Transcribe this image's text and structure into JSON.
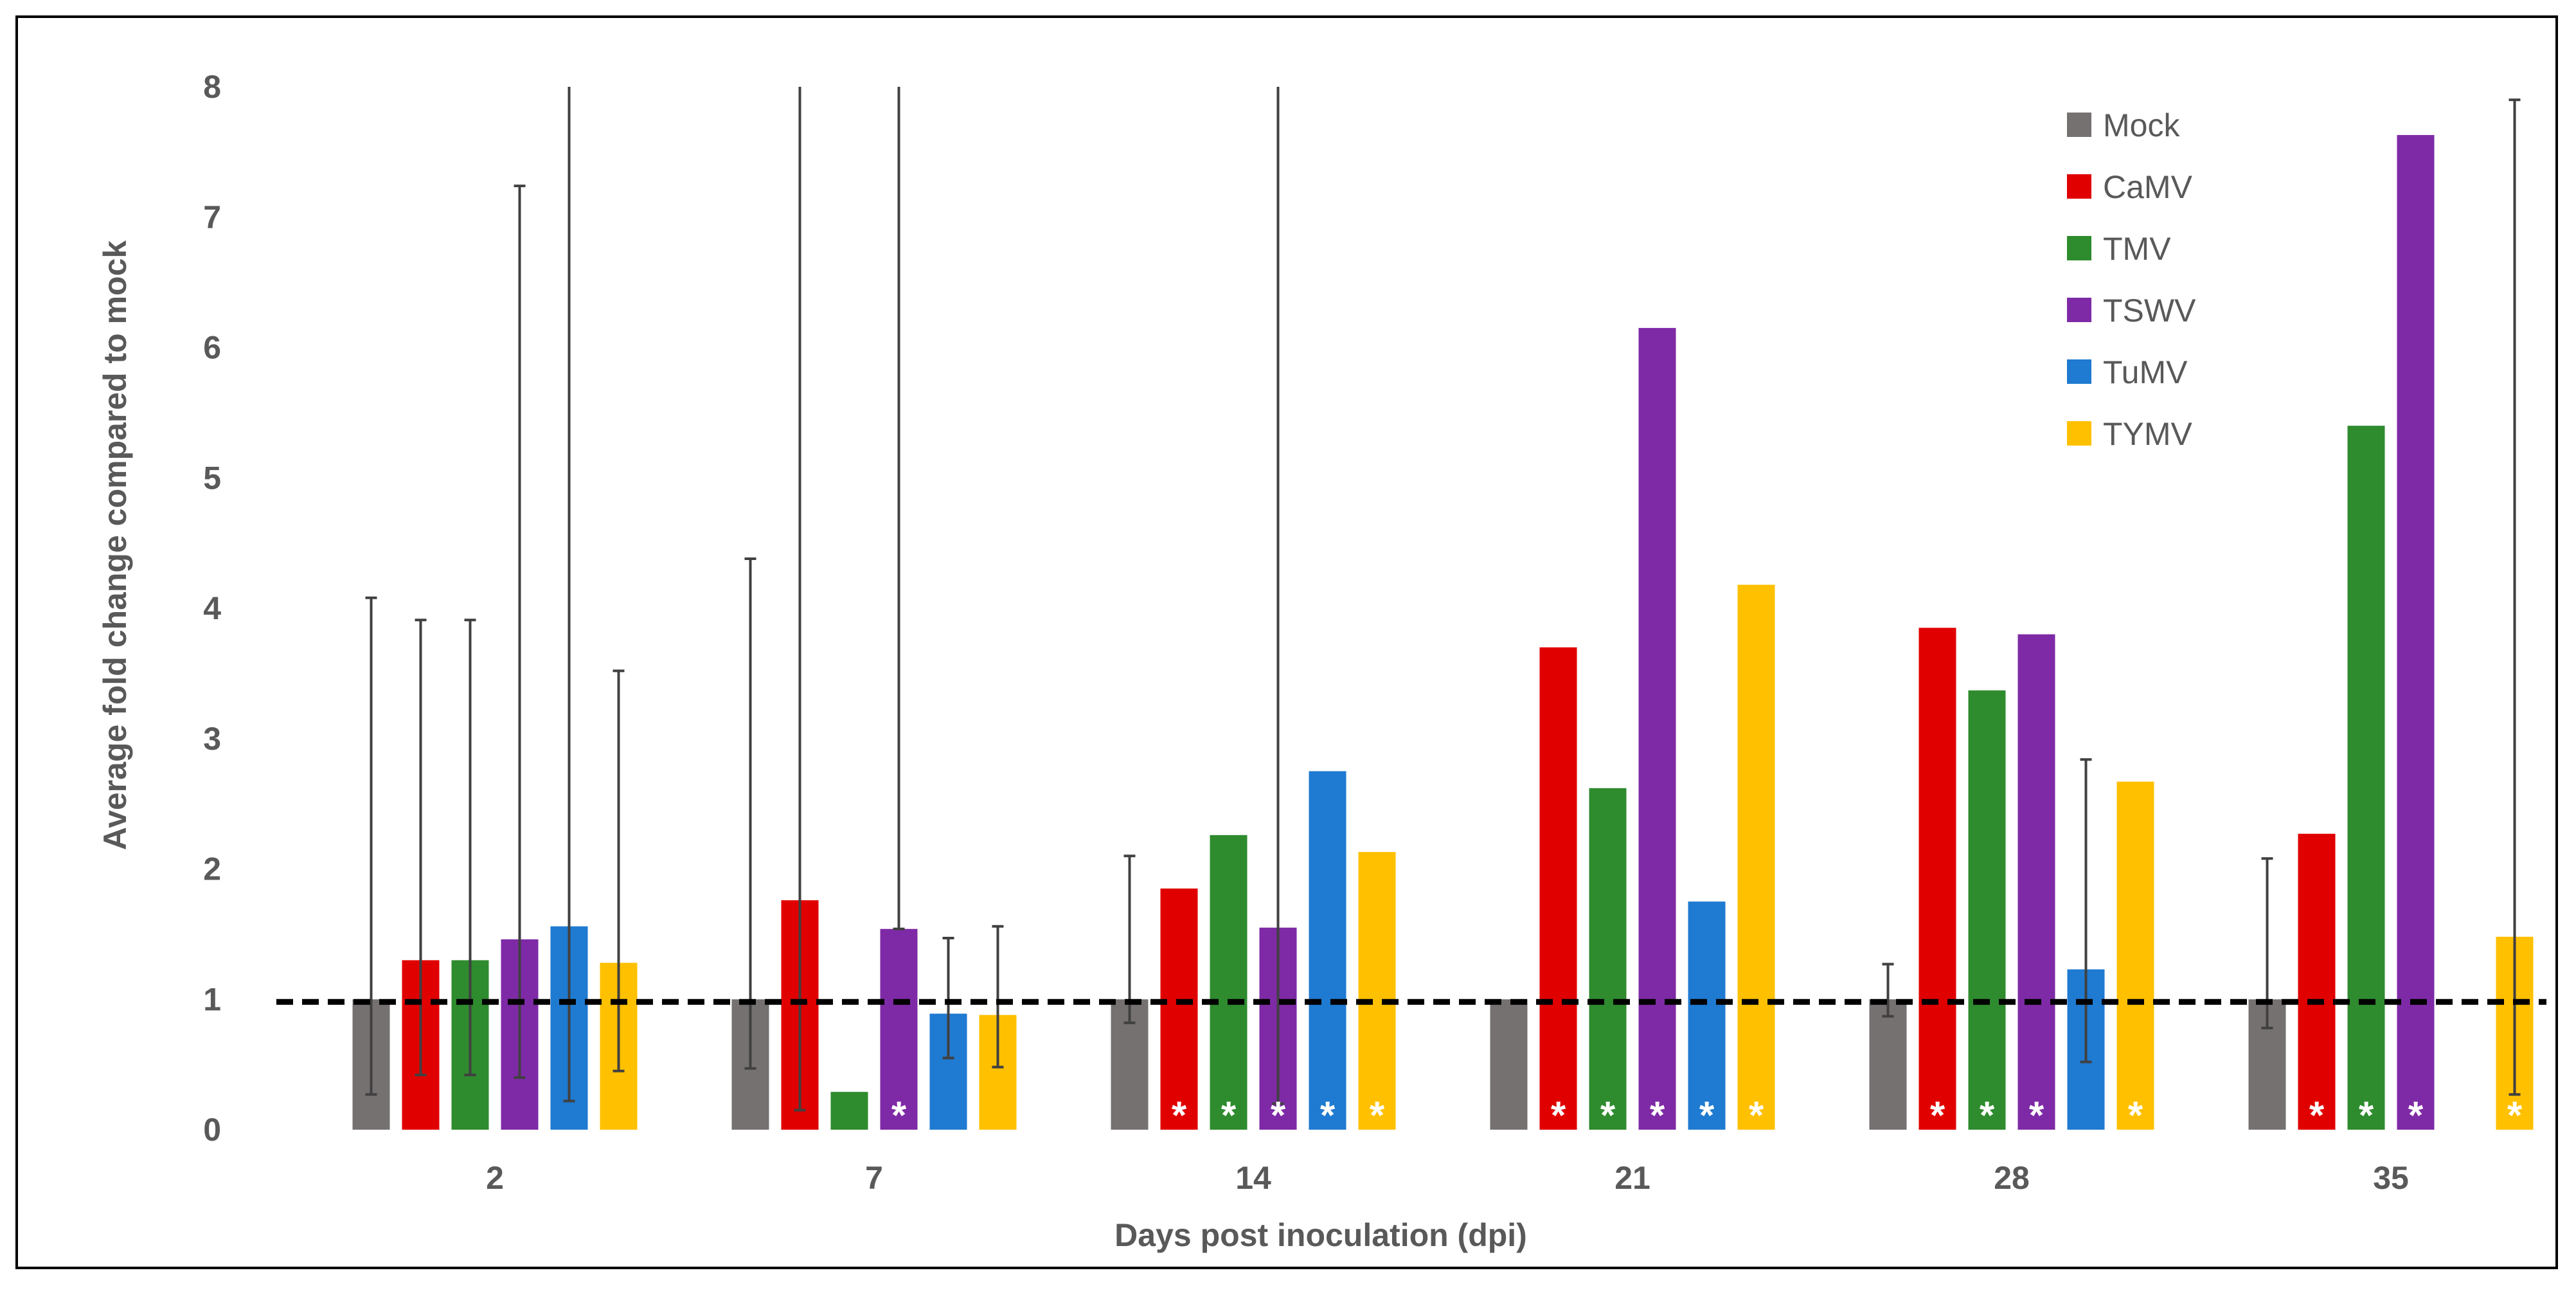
{
  "chart_data": {
    "type": "bar",
    "xlabel": "Days post inoculation (dpi)",
    "ylabel": "Average fold change compared to mock",
    "ylim": [
      0,
      8
    ],
    "yticks": [
      0,
      1,
      2,
      3,
      4,
      5,
      6,
      7,
      8
    ],
    "categories": [
      "2",
      "7",
      "14",
      "21",
      "28",
      "35"
    ],
    "reference_line": 0.98,
    "legend_position": "top-right",
    "significance_marker": "*",
    "series": [
      {
        "name": "Mock",
        "color": "#767171",
        "values": [
          1.0,
          1.0,
          1.0,
          1.0,
          1.0,
          1.0
        ],
        "error_high": [
          4.08,
          4.38,
          2.1,
          1.0,
          1.27,
          2.08
        ],
        "error_low": [
          0.27,
          0.47,
          0.82,
          1.0,
          0.87,
          0.78
        ],
        "significant": [
          false,
          false,
          false,
          false,
          false,
          false
        ]
      },
      {
        "name": "CaMV",
        "color": "#e00000",
        "values": [
          1.3,
          1.76,
          1.85,
          3.7,
          3.85,
          2.27
        ],
        "error_high": [
          3.91,
          8.0,
          1.85,
          3.7,
          3.85,
          2.27
        ],
        "error_low": [
          0.42,
          0.15,
          1.85,
          3.7,
          3.85,
          2.27
        ],
        "significant": [
          false,
          false,
          true,
          true,
          true,
          true
        ]
      },
      {
        "name": "TMV",
        "color": "#2e8b2e",
        "values": [
          1.3,
          0.29,
          2.26,
          2.62,
          3.37,
          5.4
        ],
        "error_high": [
          3.91,
          0.29,
          2.26,
          2.62,
          3.37,
          5.4
        ],
        "error_low": [
          0.42,
          0.29,
          2.26,
          2.62,
          3.37,
          5.4
        ],
        "significant": [
          false,
          false,
          true,
          true,
          true,
          true
        ]
      },
      {
        "name": "TSWV",
        "color": "#7e2aa6",
        "values": [
          1.46,
          1.54,
          1.55,
          6.15,
          3.8,
          7.63
        ],
        "error_high": [
          7.24,
          8.0,
          8.0,
          6.15,
          3.8,
          7.63
        ],
        "error_low": [
          0.4,
          1.54,
          0.2,
          6.15,
          3.8,
          7.63
        ],
        "significant": [
          false,
          true,
          true,
          true,
          true,
          true
        ]
      },
      {
        "name": "TuMV",
        "color": "#1f7ad1",
        "values": [
          1.56,
          0.89,
          2.75,
          1.75,
          1.23,
          0.0
        ],
        "error_high": [
          8.0,
          1.47,
          2.75,
          1.75,
          2.84,
          0.0
        ],
        "error_low": [
          0.22,
          0.55,
          2.75,
          1.75,
          0.52,
          0.0
        ],
        "significant": [
          false,
          false,
          true,
          true,
          false,
          false
        ]
      },
      {
        "name": "TYMV",
        "color": "#ffc000",
        "values": [
          1.28,
          0.88,
          2.13,
          4.18,
          2.67,
          1.48
        ],
        "error_high": [
          3.52,
          1.56,
          2.13,
          4.18,
          2.67,
          7.9
        ],
        "error_low": [
          0.45,
          0.48,
          2.13,
          4.18,
          2.67,
          0.27
        ],
        "significant": [
          false,
          false,
          true,
          true,
          true,
          true
        ]
      }
    ]
  }
}
